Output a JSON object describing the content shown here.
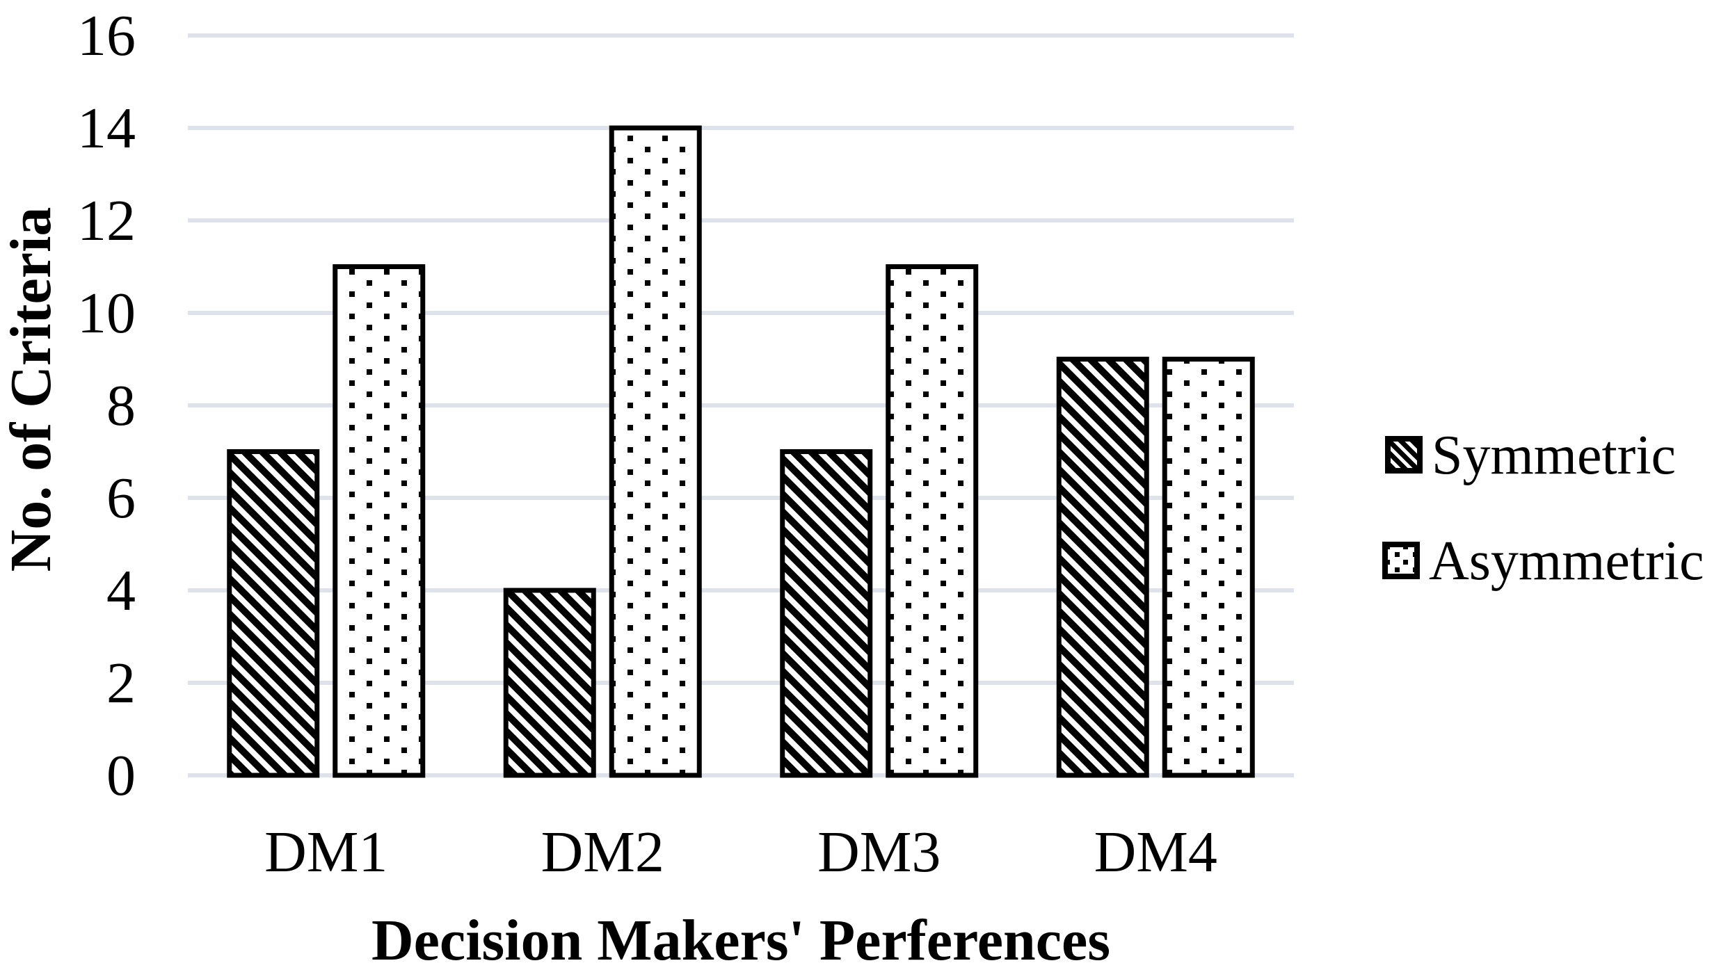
{
  "chart_data": {
    "type": "bar",
    "categories": [
      "DM1",
      "DM2",
      "DM3",
      "DM4"
    ],
    "series": [
      {
        "name": "Symmetric",
        "pattern": "diagonal-hatch",
        "values": [
          7,
          4,
          7,
          9
        ]
      },
      {
        "name": "Asymmetric",
        "pattern": "dotted",
        "values": [
          11,
          14,
          11,
          9
        ]
      }
    ],
    "xlabel": "Decision Makers' Perferences",
    "ylabel": "No. of Criteria",
    "ylim": [
      0,
      16
    ],
    "yticks": [
      0,
      2,
      4,
      6,
      8,
      10,
      12,
      14,
      16
    ],
    "grid": true,
    "legend_position": "right",
    "bar_fill": "#ffffff",
    "bar_stroke": "#000000",
    "gridline_color": "#dee2eb",
    "text_color": "#000000",
    "background": "#ffffff"
  }
}
